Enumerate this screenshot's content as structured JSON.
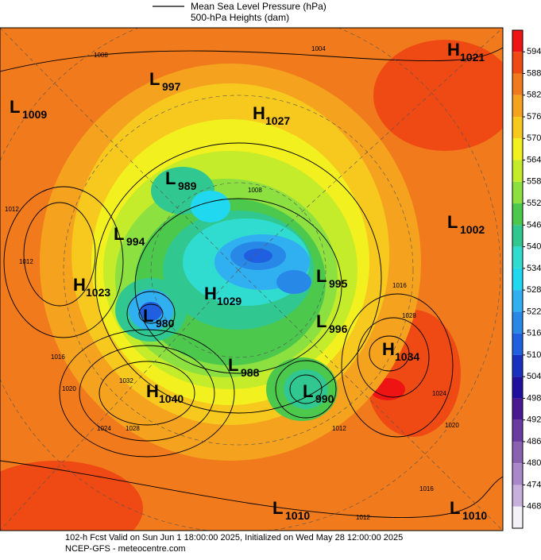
{
  "legend": {
    "line_label": "Mean Sea Level Pressure (hPa)",
    "fill_label": "500-hPa Heights (dam)"
  },
  "colorbar": {
    "ticks": [
      594,
      588,
      582,
      576,
      570,
      564,
      558,
      552,
      546,
      540,
      534,
      528,
      522,
      516,
      510,
      504,
      498,
      492,
      486,
      480,
      474,
      468
    ],
    "colors": [
      "#ee1414",
      "#f04a14",
      "#f07a1c",
      "#f5a21e",
      "#f7c81e",
      "#f2f01e",
      "#c4ec2a",
      "#8ce040",
      "#4cc84c",
      "#30c890",
      "#30dcd0",
      "#20d8f0",
      "#30b0f0",
      "#2888e8",
      "#2060e0",
      "#1830c0",
      "#2010a0",
      "#4a1890",
      "#6a3aa0",
      "#8a60b0",
      "#a888c8",
      "#c8b0dc",
      "#f4f2f8"
    ]
  },
  "centers": [
    {
      "letter": "L",
      "value": 1009
    },
    {
      "letter": "L",
      "value": 997
    },
    {
      "letter": "H",
      "value": 1027
    },
    {
      "letter": "H",
      "value": 1021
    },
    {
      "letter": "L",
      "value": 989
    },
    {
      "letter": "L",
      "value": 994
    },
    {
      "letter": "L",
      "value": 1002
    },
    {
      "letter": "H",
      "value": 1023
    },
    {
      "letter": "H",
      "value": 1029
    },
    {
      "letter": "L",
      "value": 995
    },
    {
      "letter": "L",
      "value": 980
    },
    {
      "letter": "L",
      "value": 996
    },
    {
      "letter": "H",
      "value": 1034
    },
    {
      "letter": "L",
      "value": 988
    },
    {
      "letter": "H",
      "value": 1040
    },
    {
      "letter": "L",
      "value": 990
    },
    {
      "letter": "L",
      "value": 1010
    },
    {
      "letter": "L",
      "value": 1010
    }
  ],
  "isobar_labels": [
    "1008",
    "1004",
    "1008",
    "1012",
    "1012",
    "1016",
    "1020",
    "1032",
    "1024",
    "1028",
    "1016",
    "1028",
    "1024",
    "1020",
    "1016",
    "1012",
    "1012"
  ],
  "footer": {
    "line1": "102-h Fcst Valid on Sun Jun  1 18:00:00 2025, Initialized on Wed May 28 12:00:00 2025",
    "line2": "NCEP-GFS  - meteocentre.com"
  }
}
